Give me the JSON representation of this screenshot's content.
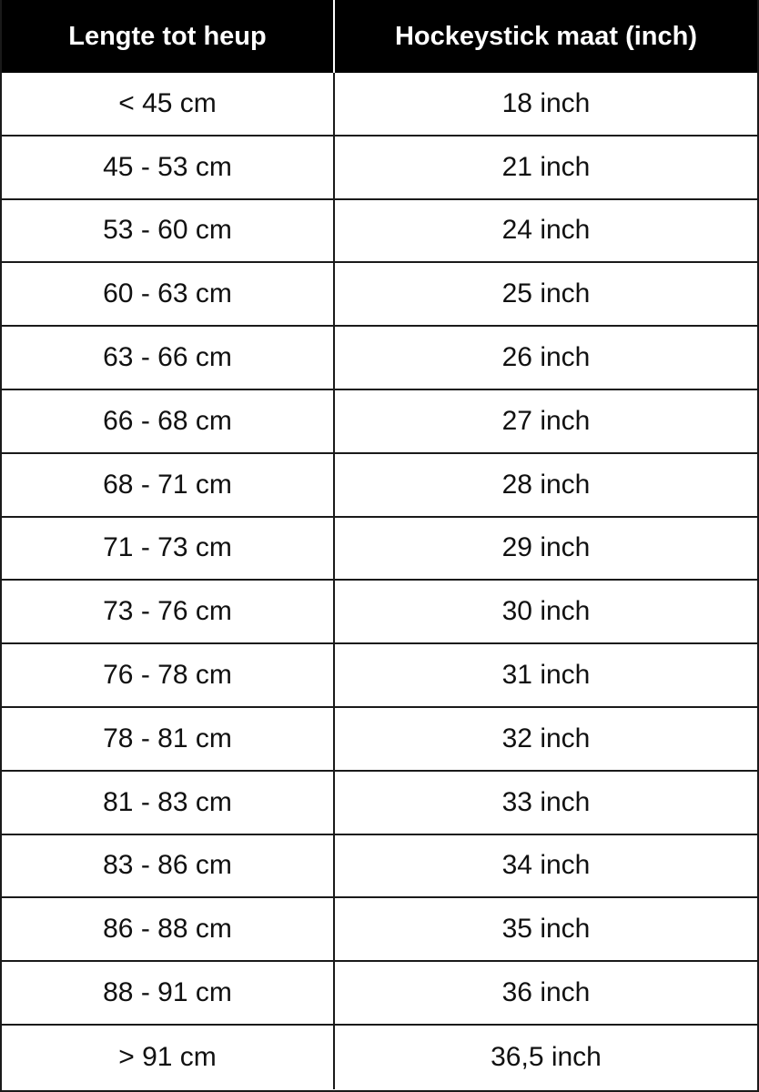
{
  "table": {
    "headers": [
      "Lengte tot heup",
      "Hockeystick maat (inch)"
    ],
    "rows": [
      [
        "< 45 cm",
        "18 inch"
      ],
      [
        "45 - 53 cm",
        "21 inch"
      ],
      [
        "53 - 60 cm",
        "24 inch"
      ],
      [
        "60 - 63 cm",
        "25 inch"
      ],
      [
        "63 - 66 cm",
        "26 inch"
      ],
      [
        "66 - 68 cm",
        "27 inch"
      ],
      [
        "68 - 71 cm",
        "28 inch"
      ],
      [
        "71 - 73 cm",
        "29 inch"
      ],
      [
        "73 - 76 cm",
        "30 inch"
      ],
      [
        "76 - 78 cm",
        "31 inch"
      ],
      [
        "78 - 81 cm",
        "32 inch"
      ],
      [
        "81 - 83 cm",
        "33 inch"
      ],
      [
        "83 - 86 cm",
        "34 inch"
      ],
      [
        "86 - 88 cm",
        "35 inch"
      ],
      [
        "88 - 91 cm",
        "36 inch"
      ],
      [
        "> 91 cm",
        "36,5 inch"
      ]
    ]
  }
}
